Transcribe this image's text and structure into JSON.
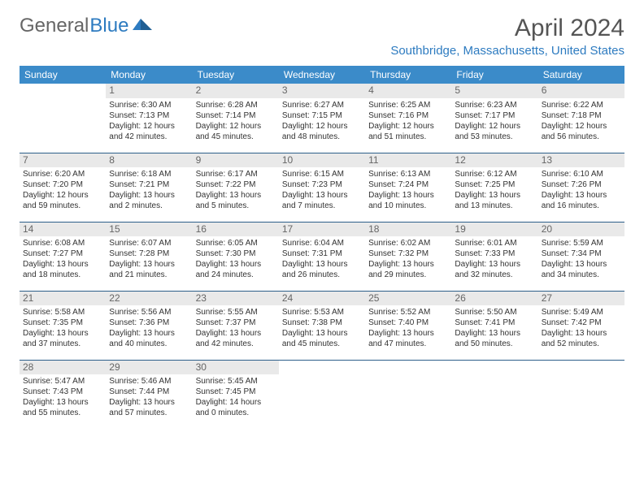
{
  "brand": {
    "part1": "General",
    "part2": "Blue",
    "color_gray": "#666666",
    "color_blue": "#2d7bc0"
  },
  "title": "April 2024",
  "location": "Southbridge, Massachusetts, United States",
  "columns": [
    "Sunday",
    "Monday",
    "Tuesday",
    "Wednesday",
    "Thursday",
    "Friday",
    "Saturday"
  ],
  "header_bg": "#3b8bc9",
  "header_fg": "#ffffff",
  "daynum_bg": "#e9e9e9",
  "rule_color": "#2d5f8a",
  "weeks": [
    [
      null,
      {
        "n": "1",
        "sr": "6:30 AM",
        "ss": "7:13 PM",
        "dl": "12 hours and 42 minutes."
      },
      {
        "n": "2",
        "sr": "6:28 AM",
        "ss": "7:14 PM",
        "dl": "12 hours and 45 minutes."
      },
      {
        "n": "3",
        "sr": "6:27 AM",
        "ss": "7:15 PM",
        "dl": "12 hours and 48 minutes."
      },
      {
        "n": "4",
        "sr": "6:25 AM",
        "ss": "7:16 PM",
        "dl": "12 hours and 51 minutes."
      },
      {
        "n": "5",
        "sr": "6:23 AM",
        "ss": "7:17 PM",
        "dl": "12 hours and 53 minutes."
      },
      {
        "n": "6",
        "sr": "6:22 AM",
        "ss": "7:18 PM",
        "dl": "12 hours and 56 minutes."
      }
    ],
    [
      {
        "n": "7",
        "sr": "6:20 AM",
        "ss": "7:20 PM",
        "dl": "12 hours and 59 minutes."
      },
      {
        "n": "8",
        "sr": "6:18 AM",
        "ss": "7:21 PM",
        "dl": "13 hours and 2 minutes."
      },
      {
        "n": "9",
        "sr": "6:17 AM",
        "ss": "7:22 PM",
        "dl": "13 hours and 5 minutes."
      },
      {
        "n": "10",
        "sr": "6:15 AM",
        "ss": "7:23 PM",
        "dl": "13 hours and 7 minutes."
      },
      {
        "n": "11",
        "sr": "6:13 AM",
        "ss": "7:24 PM",
        "dl": "13 hours and 10 minutes."
      },
      {
        "n": "12",
        "sr": "6:12 AM",
        "ss": "7:25 PM",
        "dl": "13 hours and 13 minutes."
      },
      {
        "n": "13",
        "sr": "6:10 AM",
        "ss": "7:26 PM",
        "dl": "13 hours and 16 minutes."
      }
    ],
    [
      {
        "n": "14",
        "sr": "6:08 AM",
        "ss": "7:27 PM",
        "dl": "13 hours and 18 minutes."
      },
      {
        "n": "15",
        "sr": "6:07 AM",
        "ss": "7:28 PM",
        "dl": "13 hours and 21 minutes."
      },
      {
        "n": "16",
        "sr": "6:05 AM",
        "ss": "7:30 PM",
        "dl": "13 hours and 24 minutes."
      },
      {
        "n": "17",
        "sr": "6:04 AM",
        "ss": "7:31 PM",
        "dl": "13 hours and 26 minutes."
      },
      {
        "n": "18",
        "sr": "6:02 AM",
        "ss": "7:32 PM",
        "dl": "13 hours and 29 minutes."
      },
      {
        "n": "19",
        "sr": "6:01 AM",
        "ss": "7:33 PM",
        "dl": "13 hours and 32 minutes."
      },
      {
        "n": "20",
        "sr": "5:59 AM",
        "ss": "7:34 PM",
        "dl": "13 hours and 34 minutes."
      }
    ],
    [
      {
        "n": "21",
        "sr": "5:58 AM",
        "ss": "7:35 PM",
        "dl": "13 hours and 37 minutes."
      },
      {
        "n": "22",
        "sr": "5:56 AM",
        "ss": "7:36 PM",
        "dl": "13 hours and 40 minutes."
      },
      {
        "n": "23",
        "sr": "5:55 AM",
        "ss": "7:37 PM",
        "dl": "13 hours and 42 minutes."
      },
      {
        "n": "24",
        "sr": "5:53 AM",
        "ss": "7:38 PM",
        "dl": "13 hours and 45 minutes."
      },
      {
        "n": "25",
        "sr": "5:52 AM",
        "ss": "7:40 PM",
        "dl": "13 hours and 47 minutes."
      },
      {
        "n": "26",
        "sr": "5:50 AM",
        "ss": "7:41 PM",
        "dl": "13 hours and 50 minutes."
      },
      {
        "n": "27",
        "sr": "5:49 AM",
        "ss": "7:42 PM",
        "dl": "13 hours and 52 minutes."
      }
    ],
    [
      {
        "n": "28",
        "sr": "5:47 AM",
        "ss": "7:43 PM",
        "dl": "13 hours and 55 minutes."
      },
      {
        "n": "29",
        "sr": "5:46 AM",
        "ss": "7:44 PM",
        "dl": "13 hours and 57 minutes."
      },
      {
        "n": "30",
        "sr": "5:45 AM",
        "ss": "7:45 PM",
        "dl": "14 hours and 0 minutes."
      },
      null,
      null,
      null,
      null
    ]
  ],
  "labels": {
    "sunrise": "Sunrise: ",
    "sunset": "Sunset: ",
    "daylight": "Daylight: "
  }
}
